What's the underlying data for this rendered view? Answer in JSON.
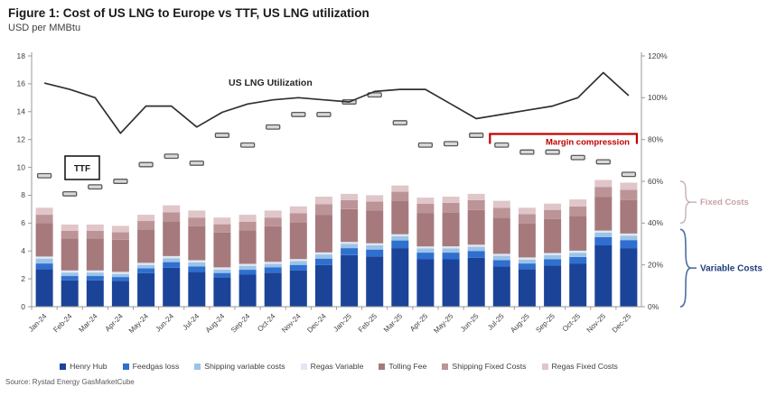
{
  "title": "Figure 1: Cost of US LNG to Europe vs TTF, US LNG utilization",
  "subtitle": "USD per MMBtu",
  "source": "Source: Rystad Energy GasMarketCube",
  "colors": {
    "henry_hub": "#1B4499",
    "feedgas_loss": "#2F6FD0",
    "shipping_variable": "#9DC3E6",
    "regas_variable": "#DEE8F6",
    "tolling_fee": "#A67A7D",
    "shipping_fixed": "#BC9498",
    "regas_fixed": "#E0C6C9",
    "utilization_line": "#303030",
    "ttf_marker_fill": "#D9D9D9",
    "ttf_marker_stroke": "#595959",
    "margin_compression": "#C00000",
    "fixed_costs_label": "#C9A2A6",
    "fixed_costs_brace": "#C6B0B3",
    "variable_costs_label": "#1F3E78",
    "variable_costs_brace": "#4A6FA5",
    "axis_line": "#9A9A9A",
    "axis_text": "#3F3F3F"
  },
  "chart_data": {
    "type": "bar",
    "subtype": "stacked-bar-with-line-and-dash-markers",
    "title": "Figure 1: Cost of US LNG to Europe vs TTF, US LNG utilization",
    "ylabel": "USD per MMBtu",
    "grid": false,
    "legend_position": "bottom",
    "categories": [
      "Jan-24",
      "Feb-24",
      "Mar-24",
      "Apr-24",
      "May-24",
      "Jun-24",
      "Jul-24",
      "Aug-24",
      "Sep-24",
      "Oct-24",
      "Nov-24",
      "Dec-24",
      "Jan-25",
      "Feb-25",
      "Mar-25",
      "Apr-25",
      "May-25",
      "Jun-25",
      "Jul-25",
      "Aug-25",
      "Sep-25",
      "Oct-25",
      "Nov-25",
      "Dec-25"
    ],
    "left_axis": {
      "min": 0,
      "max": 18,
      "step": 2
    },
    "right_axis": {
      "min": 0,
      "max": 120,
      "step": 20,
      "suffix": "%"
    },
    "series": [
      {
        "name": "Henry Hub",
        "color_key": "henry_hub",
        "values": [
          2.7,
          1.9,
          1.9,
          1.85,
          2.4,
          2.8,
          2.5,
          2.1,
          2.3,
          2.45,
          2.6,
          3.0,
          3.7,
          3.6,
          4.2,
          3.4,
          3.4,
          3.5,
          2.9,
          2.7,
          2.95,
          3.1,
          4.4,
          4.2
        ]
      },
      {
        "name": "Feedgas loss",
        "color_key": "feedgas_loss",
        "values": [
          0.4,
          0.3,
          0.3,
          0.28,
          0.35,
          0.4,
          0.38,
          0.32,
          0.35,
          0.37,
          0.4,
          0.45,
          0.5,
          0.5,
          0.55,
          0.48,
          0.48,
          0.5,
          0.45,
          0.4,
          0.45,
          0.47,
          0.6,
          0.58
        ]
      },
      {
        "name": "Shipping variable costs",
        "color_key": "shipping_variable",
        "values": [
          0.35,
          0.25,
          0.25,
          0.22,
          0.25,
          0.28,
          0.3,
          0.25,
          0.28,
          0.25,
          0.27,
          0.3,
          0.3,
          0.3,
          0.3,
          0.3,
          0.3,
          0.3,
          0.3,
          0.28,
          0.3,
          0.3,
          0.32,
          0.32
        ]
      },
      {
        "name": "Regas Variable",
        "color_key": "regas_variable",
        "values": [
          0.15,
          0.15,
          0.15,
          0.15,
          0.15,
          0.15,
          0.15,
          0.15,
          0.15,
          0.15,
          0.15,
          0.15,
          0.15,
          0.15,
          0.15,
          0.15,
          0.15,
          0.15,
          0.15,
          0.15,
          0.15,
          0.15,
          0.15,
          0.15
        ]
      },
      {
        "name": "Tolling Fee",
        "color_key": "tolling_fee",
        "values": [
          2.4,
          2.3,
          2.3,
          2.3,
          2.4,
          2.5,
          2.45,
          2.5,
          2.4,
          2.55,
          2.6,
          2.7,
          2.35,
          2.35,
          2.4,
          2.4,
          2.45,
          2.5,
          2.6,
          2.45,
          2.45,
          2.5,
          2.4,
          2.4
        ]
      },
      {
        "name": "Shipping Fixed Costs",
        "color_key": "shipping_fixed",
        "values": [
          0.6,
          0.55,
          0.55,
          0.55,
          0.6,
          0.65,
          0.62,
          0.6,
          0.62,
          0.63,
          0.68,
          0.75,
          0.65,
          0.65,
          0.65,
          0.65,
          0.67,
          0.7,
          0.7,
          0.67,
          0.65,
          0.68,
          0.73,
          0.75
        ]
      },
      {
        "name": "Regas Fixed Costs",
        "color_key": "regas_fixed",
        "values": [
          0.5,
          0.45,
          0.45,
          0.45,
          0.45,
          0.5,
          0.5,
          0.48,
          0.5,
          0.5,
          0.5,
          0.55,
          0.45,
          0.45,
          0.45,
          0.45,
          0.45,
          0.45,
          0.5,
          0.45,
          0.45,
          0.5,
          0.5,
          0.5
        ]
      }
    ],
    "line_series": {
      "name": "US LNG Utilization",
      "axis": "right",
      "unit": "%",
      "values": [
        107,
        104,
        100,
        83,
        96,
        96,
        86,
        93,
        97,
        99,
        100,
        99,
        98,
        103,
        104,
        104,
        97,
        90,
        92,
        94,
        96,
        100,
        112,
        101
      ]
    },
    "marker_series": {
      "name": "TTF",
      "axis": "left",
      "unit": "USD per MMBtu",
      "values": [
        9.4,
        8.1,
        8.6,
        9.0,
        10.2,
        10.8,
        10.3,
        12.3,
        11.6,
        12.9,
        13.8,
        13.8,
        14.7,
        15.2,
        13.2,
        11.6,
        11.7,
        12.3,
        11.6,
        11.1,
        11.1,
        10.7,
        10.4,
        9.5
      ]
    },
    "annotations": {
      "line_label": "US LNG Utilization",
      "marker_label": "TTF",
      "margin_compression": {
        "text": "Margin compression",
        "from": "Jul-25",
        "to": "Dec-25",
        "level_usd": 12.4
      },
      "fixed_costs_brace": {
        "text": "Fixed Costs",
        "from_pct": 40,
        "to_pct": 60
      },
      "variable_costs_brace": {
        "text": "Variable Costs",
        "from_pct": 0,
        "to_pct": 37
      }
    }
  }
}
